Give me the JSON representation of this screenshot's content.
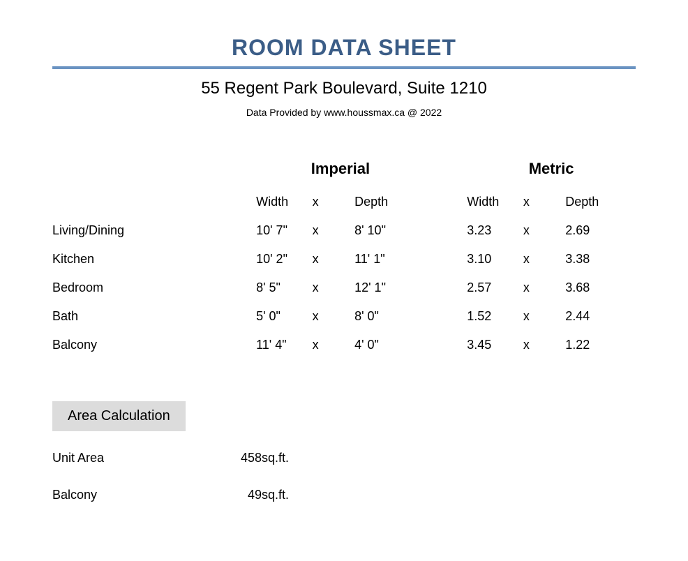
{
  "title": "ROOM DATA SHEET",
  "title_color": "#3b5d87",
  "divider_color": "#6a93c2",
  "address": "55 Regent Park Boulevard, Suite 1210",
  "provider": "Data Provided by www.houssmax.ca @ 2022",
  "group_headers": {
    "imperial": "Imperial",
    "metric": "Metric"
  },
  "col_headers": {
    "width": "Width",
    "x": "x",
    "depth": "Depth"
  },
  "rooms": [
    {
      "name": "Living/Dining",
      "imp_w": "10' 7\"",
      "imp_d": "8' 10\"",
      "met_w": "3.23",
      "met_d": "2.69"
    },
    {
      "name": "Kitchen",
      "imp_w": "10' 2\"",
      "imp_d": "11' 1\"",
      "met_w": "3.10",
      "met_d": "3.38"
    },
    {
      "name": "Bedroom",
      "imp_w": "8' 5\"",
      "imp_d": "12' 1\"",
      "met_w": "2.57",
      "met_d": "3.68"
    },
    {
      "name": "Bath",
      "imp_w": "5' 0\"",
      "imp_d": "8' 0\"",
      "met_w": "1.52",
      "met_d": "2.44"
    },
    {
      "name": "Balcony",
      "imp_w": "11' 4\"",
      "imp_d": "4' 0\"",
      "met_w": "3.45",
      "met_d": "1.22"
    }
  ],
  "x_sep": "x",
  "area_section_title": "Area Calculation",
  "areas": [
    {
      "label": "Unit Area",
      "value": "458",
      "unit": "sq.ft."
    },
    {
      "label": "Balcony",
      "value": "49",
      "unit": "sq.ft."
    }
  ]
}
